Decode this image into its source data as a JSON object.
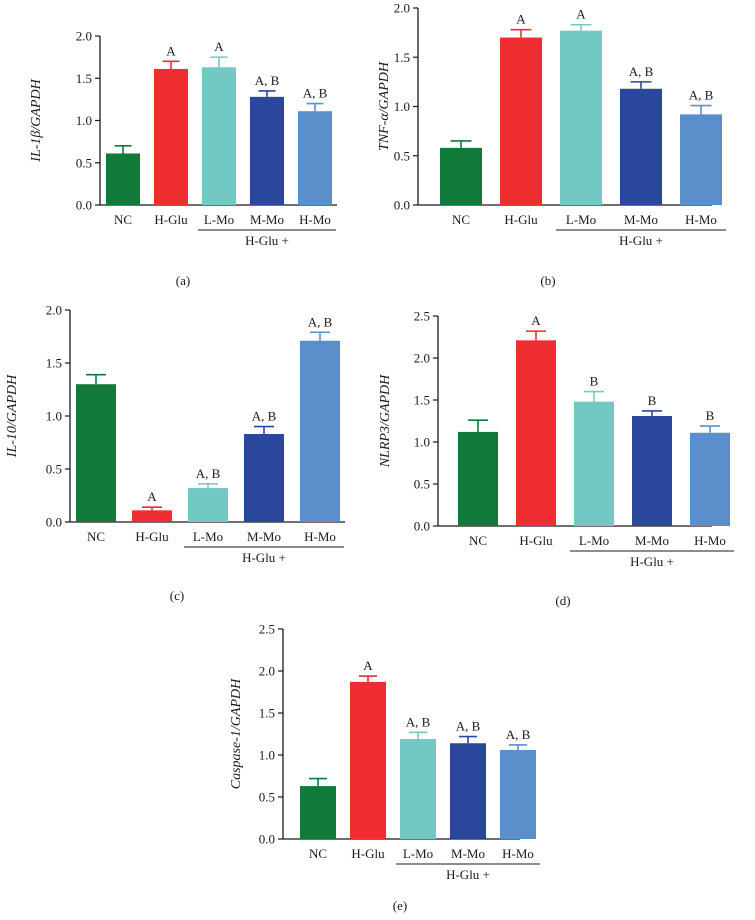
{
  "colors": {
    "NC": "#117a3a",
    "H-Glu": "#ee2e30",
    "L-Mo": "#72c9c3",
    "M-Mo": "#2a479c",
    "H-Mo": "#5a8fcb",
    "axis": "#1a1a1a"
  },
  "chart_data": [
    {
      "id": "a",
      "type": "bar",
      "panel_label": "(a)",
      "ylabel_italic": "IL-1β",
      "ylabel_rest": "/GAPDH",
      "categories": [
        "NC",
        "H-Glu",
        "L-Mo",
        "M-Mo",
        "H-Mo"
      ],
      "values": [
        0.61,
        1.61,
        1.63,
        1.28,
        1.11
      ],
      "errors": [
        0.09,
        0.09,
        0.12,
        0.07,
        0.09
      ],
      "annotations": [
        "",
        "A",
        "A",
        "A, B",
        "A, B"
      ],
      "ylim": [
        0,
        2.0
      ],
      "yticks": [
        "0.0",
        "0.5",
        "1.0",
        "1.5",
        "2.0"
      ],
      "group_label": "H-Glu +"
    },
    {
      "id": "b",
      "type": "bar",
      "panel_label": "(b)",
      "ylabel_italic": "TNF-α",
      "ylabel_rest": "/GAPDH",
      "categories": [
        "NC",
        "H-Glu",
        "L-Mo",
        "M-Mo",
        "H-Mo"
      ],
      "values": [
        0.58,
        1.7,
        1.77,
        1.18,
        0.92
      ],
      "errors": [
        0.07,
        0.08,
        0.06,
        0.07,
        0.09
      ],
      "annotations": [
        "",
        "A",
        "A",
        "A, B",
        "A, B"
      ],
      "ylim": [
        0,
        2.0
      ],
      "yticks": [
        "0.0",
        "0.5",
        "1.0",
        "1.5",
        "2.0"
      ],
      "group_label": "H-Glu +"
    },
    {
      "id": "c",
      "type": "bar",
      "panel_label": "(c)",
      "ylabel_italic": "IL-10",
      "ylabel_rest": "/GAPDH",
      "categories": [
        "NC",
        "H-Glu",
        "L-Mo",
        "M-Mo",
        "H-Mo"
      ],
      "values": [
        1.3,
        0.11,
        0.32,
        0.83,
        1.71
      ],
      "errors": [
        0.09,
        0.03,
        0.04,
        0.07,
        0.08
      ],
      "annotations": [
        "",
        "A",
        "A, B",
        "A, B",
        "A, B"
      ],
      "ylim": [
        0,
        2.0
      ],
      "yticks": [
        "0.0",
        "0.5",
        "1.0",
        "1.5",
        "2.0"
      ],
      "group_label": "H-Glu +"
    },
    {
      "id": "d",
      "type": "bar",
      "panel_label": "(d)",
      "ylabel_italic": "NLRP3",
      "ylabel_rest": "/GAPDH",
      "categories": [
        "NC",
        "H-Glu",
        "L-Mo",
        "M-Mo",
        "H-Mo"
      ],
      "values": [
        1.12,
        2.21,
        1.48,
        1.31,
        1.11
      ],
      "errors": [
        0.14,
        0.11,
        0.12,
        0.06,
        0.08
      ],
      "annotations": [
        "",
        "A",
        "B",
        "B",
        "B"
      ],
      "ylim": [
        0,
        2.5
      ],
      "yticks": [
        "0.0",
        "0.5",
        "1.0",
        "1.5",
        "2.0",
        "2.5"
      ],
      "group_label": "H-Glu +"
    },
    {
      "id": "e",
      "type": "bar",
      "panel_label": "(e)",
      "ylabel_italic": "Caspase-1",
      "ylabel_rest": "/GAPDH",
      "categories": [
        "NC",
        "H-Glu",
        "L-Mo",
        "M-Mo",
        "H-Mo"
      ],
      "values": [
        0.63,
        1.87,
        1.19,
        1.14,
        1.06
      ],
      "errors": [
        0.09,
        0.07,
        0.08,
        0.08,
        0.06
      ],
      "annotations": [
        "",
        "A",
        "A, B",
        "A, B",
        "A, B"
      ],
      "ylim": [
        0,
        2.5
      ],
      "yticks": [
        "0.0",
        "0.5",
        "1.0",
        "1.5",
        "2.0",
        "2.5"
      ],
      "group_label": "H-Glu +"
    }
  ]
}
